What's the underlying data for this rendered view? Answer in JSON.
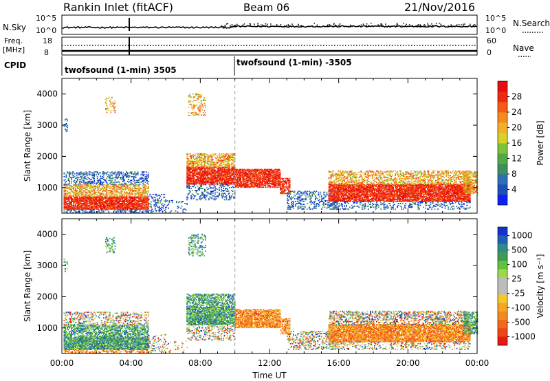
{
  "header": {
    "title": "Rankin Inlet (fitACF)",
    "beam": "Beam 06",
    "date": "21/Nov/2016"
  },
  "strip": {
    "nsky_label": "N.Sky",
    "nsky_ticks": [
      "10^5",
      "10^0"
    ],
    "nsearch_label": "N.Search",
    "nsearch_ticks": [
      "10^5",
      "10^0"
    ],
    "freq_label_1": "Freq.",
    "freq_label_2": "[MHz]",
    "freq_ticks": [
      "18",
      "8"
    ],
    "nave_label": "Nave",
    "nave_ticks": [
      "60",
      "0"
    ],
    "cpid_label": "CPID",
    "cpid_segments": [
      {
        "text": "twofsound (1-min) 3505",
        "start_hour": 0
      },
      {
        "text": "twofsound (1-min) -3505",
        "start_hour": 10
      }
    ]
  },
  "chart_data": [
    {
      "type": "heatmap",
      "panel": "power",
      "xlabel": "",
      "ylabel": "Slant Range [km]",
      "xlim": [
        0,
        24
      ],
      "ylim": [
        180,
        4500
      ],
      "yticks": [
        "1000",
        "2000",
        "3000",
        "4000"
      ],
      "colorbar_label": "Power [dB]",
      "colorbar_ticks": [
        "4",
        "8",
        "12",
        "16",
        "20",
        "24",
        "28"
      ],
      "colorscale": [
        "#0a22f2",
        "#1f4fb8",
        "#2e6fb3",
        "#3f8f5c",
        "#54a845",
        "#7fc23a",
        "#d6d22a",
        "#f2b02a",
        "#f58a1f",
        "#f55a17",
        "#ee2a12",
        "#e60e0e"
      ],
      "range_vmin": 0,
      "range_vmax": 32
    },
    {
      "type": "heatmap",
      "panel": "velocity",
      "xlabel": "Time UT",
      "ylabel": "Slant Range [km]",
      "xlim": [
        0,
        24
      ],
      "ylim": [
        180,
        4500
      ],
      "yticks": [
        "1000",
        "2000",
        "3000",
        "4000"
      ],
      "xticks": [
        "00:00",
        "04:00",
        "08:00",
        "12:00",
        "16:00",
        "20:00",
        "00:00"
      ],
      "colorbar_label": "Velocity [m s⁻¹]",
      "colorbar_ticks": [
        "1000",
        "500",
        "100",
        "25",
        "-25",
        "-100",
        "-500",
        "-1000"
      ],
      "colorscale": [
        "#1133cc",
        "#1f5fb5",
        "#2f8a8a",
        "#3e9a55",
        "#62c23b",
        "#9ed84a",
        "#bdbdbd",
        "#bdbdbd",
        "#f7c72a",
        "#f5a623",
        "#f28a1f",
        "#f06a1a",
        "#ee4416",
        "#e81a10"
      ]
    }
  ]
}
